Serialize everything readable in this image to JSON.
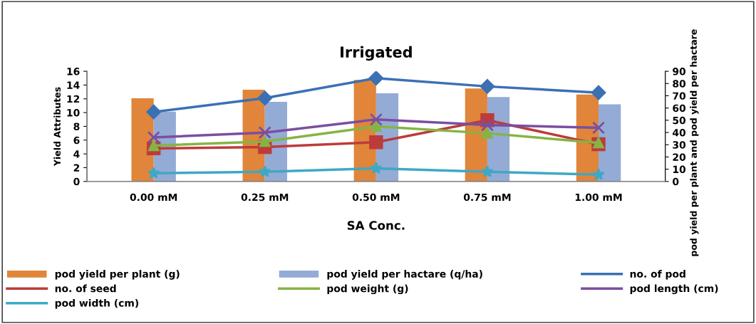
{
  "chart_data": {
    "type": "bar",
    "title": "Irrigated",
    "xlabel": "SA Conc.",
    "ylabel": "Yield Attributes",
    "y2label": "pod yield per plant and pod yield per hactare",
    "categories": [
      "0.00 mM",
      "0.25 mM",
      "0.50 mM",
      "0.75 mM",
      "1.00 mM"
    ],
    "series": [
      {
        "name": "pod yield per plant (g)",
        "axis": "y2",
        "color": "#e0853a",
        "values": [
          68,
          75,
          83,
          76,
          71
        ]
      },
      {
        "name": "pod yield per hactare (q/ha)",
        "axis": "y2",
        "color": "#94abd6",
        "values": [
          57,
          65,
          72,
          69,
          63
        ]
      },
      {
        "name": "no. of pod",
        "type": "line",
        "marker": "diamond",
        "color": "#3b70b4",
        "values": [
          10.1,
          12.1,
          15.0,
          13.8,
          12.9
        ]
      },
      {
        "name": "no. of seed",
        "type": "line",
        "marker": "square",
        "color": "#bd3c3a",
        "values": [
          4.8,
          5.0,
          5.7,
          8.9,
          5.4
        ]
      },
      {
        "name": "pod weight (g)",
        "type": "line",
        "marker": "triangle",
        "color": "#86b443",
        "values": [
          5.2,
          5.8,
          8.0,
          7.0,
          5.6
        ]
      },
      {
        "name": "pod length (cm)",
        "type": "line",
        "marker": "cross",
        "color": "#7a4fa0",
        "values": [
          6.4,
          7.1,
          9.0,
          8.2,
          7.8
        ]
      },
      {
        "name": "pod width (cm)",
        "type": "line",
        "marker": "star",
        "color": "#3fa8c4",
        "values": [
          1.2,
          1.4,
          1.9,
          1.4,
          1.0
        ]
      }
    ],
    "ylim": [
      0,
      16
    ],
    "yticks": [
      0,
      2,
      4,
      6,
      8,
      10,
      12,
      14,
      16
    ],
    "y2lim": [
      0,
      90
    ],
    "y2ticks": [
      0,
      10,
      20,
      30,
      40,
      50,
      60,
      70,
      80,
      90
    ],
    "legend": "bottom",
    "grid": false
  }
}
